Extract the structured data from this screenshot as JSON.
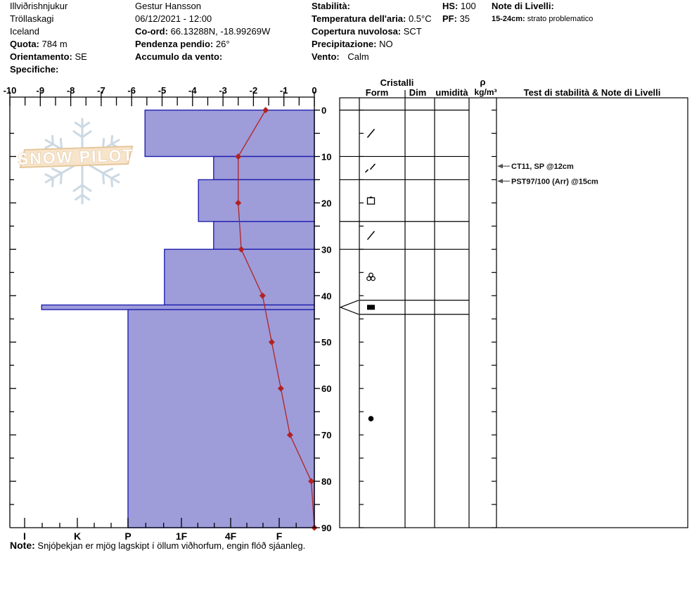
{
  "header": {
    "location": {
      "line1": "Illviðrishnjukur",
      "line2": "Tröllaskagi",
      "line3": "Iceland",
      "quota_label": "Quota:",
      "quota_value": "784 m",
      "orientamento_label": "Orientamento:",
      "orientamento_value": "SE",
      "specifiche_label": "Specifiche:"
    },
    "observer": {
      "name": "Gestur Hansson",
      "datetime": "06/12/2021 - 12:00",
      "coord_label": "Co-ord:",
      "coord_value": "66.13288N, -18.99269W",
      "pendenza_label": "Pendenza pendio:",
      "pendenza_value": "26°",
      "accumulo_label": "Accumulo da vento:",
      "accumulo_value": ""
    },
    "conditions": {
      "stabilita_label": "Stabilità:",
      "stabilita_value": "",
      "temp_label": "Temperatura dell'aria:",
      "temp_value": "0.5°C",
      "copertura_label": "Copertura nuvolosa:",
      "copertura_value": "SCT",
      "precip_label": "Precipitazione:",
      "precip_value": "NO",
      "vento_label": "Vento:",
      "vento_value": "Calm"
    },
    "totals": {
      "hs_label": "HS:",
      "hs_value": "100",
      "pf_label": "PF:",
      "pf_value": "35"
    },
    "level_notes": {
      "title": "Note di Livelli:",
      "entry_label": "15-24cm:",
      "entry_value": "strato problematico"
    }
  },
  "logo": {
    "text": "SNOW PILOT"
  },
  "note": {
    "label": "Note:",
    "text": "Snjóþekjan er mjög lagskipt í öllum viðhorfum, engin flóð sjáanleg."
  },
  "chart_data": {
    "type": "snow-profile",
    "temperature_axis": {
      "unit": "°C",
      "min": -10,
      "max": 0,
      "major_ticks": [
        -10,
        -9,
        -8,
        -7,
        -6,
        -5,
        -4,
        -3,
        -2,
        -1,
        0
      ],
      "minor_step": 0.5
    },
    "depth_axis": {
      "unit": "cm",
      "max": 90,
      "labels": [
        0,
        10,
        20,
        30,
        40,
        50,
        60,
        70,
        80,
        90
      ],
      "minor_step": 5
    },
    "hardness_axis": {
      "categories": [
        "I",
        "K",
        "P",
        "1F",
        "4F",
        "F"
      ]
    },
    "temperature_profile": {
      "depths_cm": [
        0,
        10,
        20,
        30,
        40,
        50,
        60,
        70,
        80,
        90
      ],
      "temps_c": [
        -1.6,
        -2.5,
        -2.5,
        -2.4,
        -1.7,
        -1.4,
        -1.1,
        -0.8,
        -0.1,
        0.0
      ]
    },
    "layers": [
      {
        "top_cm": 0,
        "bottom_cm": 10,
        "hardness": "P-",
        "grain": "DF",
        "symbol": "slash"
      },
      {
        "top_cm": 10,
        "bottom_cm": 15,
        "hardness": "4F+",
        "grain": "DF",
        "symbol": "slash-small"
      },
      {
        "top_cm": 15,
        "bottom_cm": 24,
        "hardness": "1F-",
        "grain": "FC",
        "symbol": "square"
      },
      {
        "top_cm": 24,
        "bottom_cm": 30,
        "hardness": "4F+",
        "grain": "DF",
        "symbol": "slash"
      },
      {
        "top_cm": 30,
        "bottom_cm": 42,
        "hardness": "1F+",
        "grain": "MFcl",
        "symbol": "cluster"
      },
      {
        "top_cm": 42,
        "bottom_cm": 43,
        "hardness": "I-",
        "grain": "IF",
        "symbol": "filled-rect",
        "flagged": true
      },
      {
        "top_cm": 43,
        "bottom_cm": 90,
        "hardness": "P",
        "grain": "RG",
        "symbol": "filled-circle"
      }
    ],
    "panel_headers": {
      "cristalli": "Cristalli",
      "form": "Form",
      "dim": "Dim",
      "umidita": "umidità",
      "rho": "ρ",
      "rho_unit": "kg/m³",
      "tests": "Test di stabilità & Note di Livelli"
    },
    "tests": [
      {
        "text": "CT11, SP @12cm",
        "depth_cm": 12
      },
      {
        "text": "PST97/100 (Arr) @15cm",
        "depth_cm": 15
      }
    ],
    "colors": {
      "bar_fill": "#9e9cd9",
      "bar_border": "#2020b0",
      "temp_line": "#b22222",
      "axis": "#000000",
      "snowflake": "#ccd9e3",
      "banner_fill": "#f7e4ca",
      "banner_border": "#e6c69c",
      "banner_text": "#ffffff",
      "banner_text_outline": "#dcbf96"
    }
  }
}
